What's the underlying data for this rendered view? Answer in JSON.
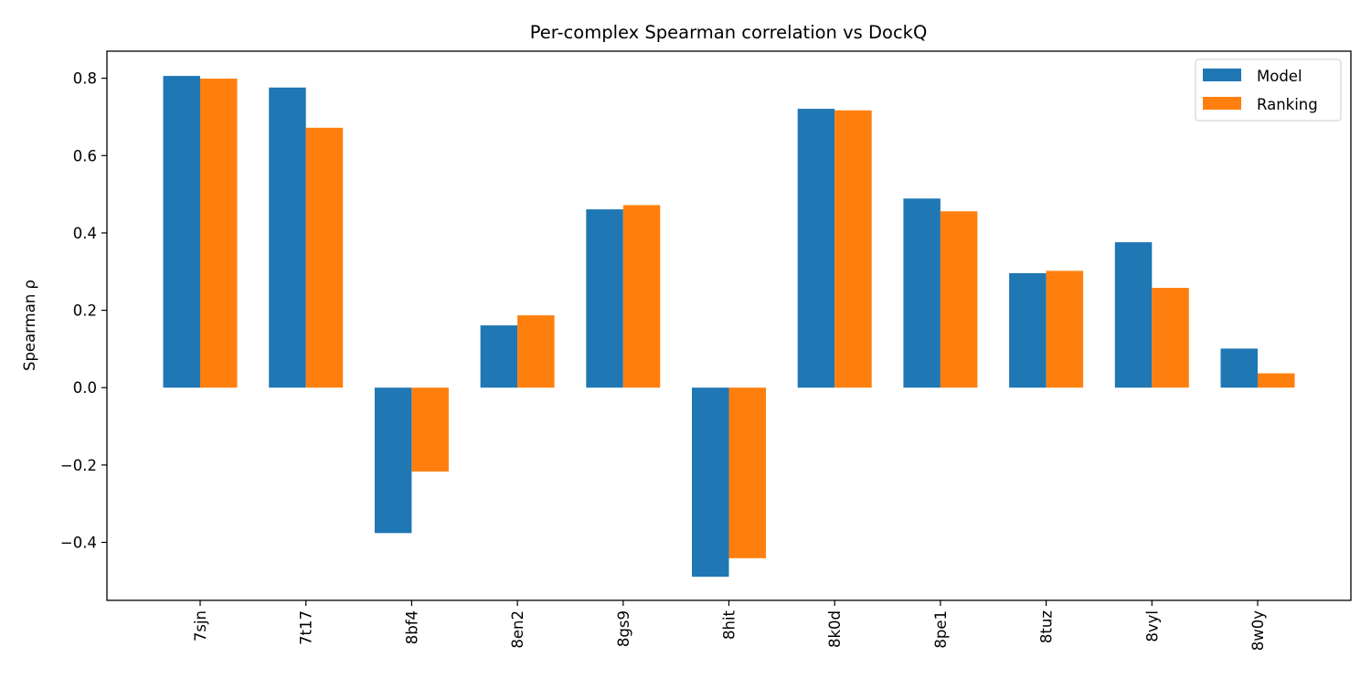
{
  "chart_data": {
    "type": "bar",
    "title": "Per-complex Spearman correlation vs DockQ",
    "xlabel": "",
    "ylabel": "Spearman ρ",
    "categories": [
      "7sjn",
      "7t17",
      "8bf4",
      "8en2",
      "8gs9",
      "8hit",
      "8k0d",
      "8pe1",
      "8tuz",
      "8vyl",
      "8w0y"
    ],
    "series": [
      {
        "name": "Model",
        "color": "#1f77b4",
        "values": [
          0.806,
          0.776,
          -0.376,
          0.161,
          0.461,
          -0.489,
          0.721,
          0.489,
          0.296,
          0.376,
          0.101
        ]
      },
      {
        "name": "Ranking",
        "color": "#ff7f0e",
        "values": [
          0.799,
          0.672,
          -0.217,
          0.187,
          0.472,
          -0.441,
          0.717,
          0.456,
          0.302,
          0.258,
          0.037
        ]
      }
    ],
    "ylim": [
      -0.55,
      0.87
    ],
    "yticks": [
      -0.4,
      -0.2,
      0.0,
      0.2,
      0.4,
      0.6,
      0.8
    ],
    "ytick_labels": [
      "−0.4",
      "−0.2",
      "0.0",
      "0.2",
      "0.4",
      "0.6",
      "0.8"
    ],
    "grid": false,
    "legend_position": "top-right"
  }
}
